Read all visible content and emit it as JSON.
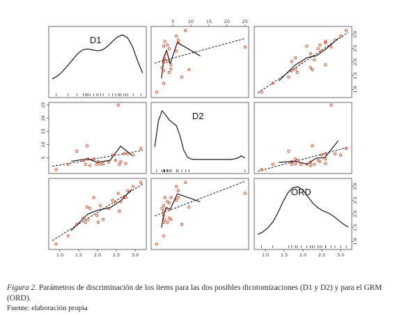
{
  "caption": {
    "figure_label": "Figura 2",
    "text": ". Parámetros de discriminación de los ítems para las dos posibles dicotomizaciones (D1 y D2) y para el GRM (ORD).",
    "source": "Fuente: elaboración propia"
  },
  "colors": {
    "points": "#d23a1a",
    "lines": "#000000",
    "frame": "#444444"
  },
  "chart_data": {
    "type": "scatter",
    "subtype": "scatterplot-matrix",
    "variables": [
      "D1",
      "D2",
      "ORD"
    ],
    "ranges": {
      "D1": [
        0.8,
        3.2
      ],
      "D2": [
        0,
        25
      ],
      "ORD": [
        0.8,
        3.2
      ]
    },
    "ticks": {
      "D1": [
        "1.0",
        "1.5",
        "2.0",
        "2.5",
        "3.0"
      ],
      "D2": [
        "5",
        "10",
        "15",
        "20",
        "25"
      ],
      "ORD": [
        "1.0",
        "1.5",
        "2.0",
        "2.5",
        "3.0"
      ]
    },
    "items": {
      "D1": [
        0.9,
        1.22,
        1.45,
        1.62,
        1.68,
        1.72,
        1.75,
        1.8,
        1.9,
        1.98,
        2.02,
        2.08,
        2.15,
        2.3,
        2.4,
        2.48,
        2.55,
        2.58,
        2.62,
        2.7,
        2.75,
        2.8,
        2.95,
        3.15
      ],
      "D2": [
        0.5,
        2.5,
        7.5,
        4.0,
        2.5,
        9.5,
        4.5,
        2.0,
        4.5,
        2.5,
        3.5,
        2.5,
        2.7,
        3.3,
        6.0,
        4.0,
        25.0,
        2.5,
        3.5,
        6.5,
        2.8,
        6.5,
        6.0,
        8.5
      ],
      "ORD": [
        0.9,
        1.2,
        1.62,
        1.85,
        1.7,
        2.25,
        1.8,
        2.2,
        2.6,
        1.95,
        1.7,
        2.3,
        1.8,
        2.2,
        2.5,
        2.4,
        2.75,
        2.1,
        2.45,
        2.6,
        2.6,
        2.85,
        3.0,
        3.15
      ]
    },
    "density": {
      "D1": [
        0.12,
        0.18,
        0.27,
        0.38,
        0.5,
        0.62,
        0.7,
        0.72,
        0.7,
        0.68,
        0.7,
        0.77,
        0.87,
        0.96,
        1.0,
        0.94,
        0.76,
        0.48,
        0.24
      ],
      "D2": [
        0.28,
        0.8,
        1.0,
        0.92,
        0.82,
        0.76,
        0.7,
        0.5,
        0.22,
        0.08,
        0.04,
        0.03,
        0.03,
        0.03,
        0.03,
        0.03,
        0.03,
        0.03,
        0.03,
        0.03,
        0.03,
        0.03,
        0.04,
        0.06,
        0.1,
        0.06
      ],
      "ORD": [
        0.05,
        0.1,
        0.18,
        0.3,
        0.48,
        0.7,
        0.88,
        0.98,
        1.0,
        0.93,
        0.8,
        0.67,
        0.58,
        0.52,
        0.48,
        0.42,
        0.34,
        0.26,
        0.2
      ]
    }
  }
}
